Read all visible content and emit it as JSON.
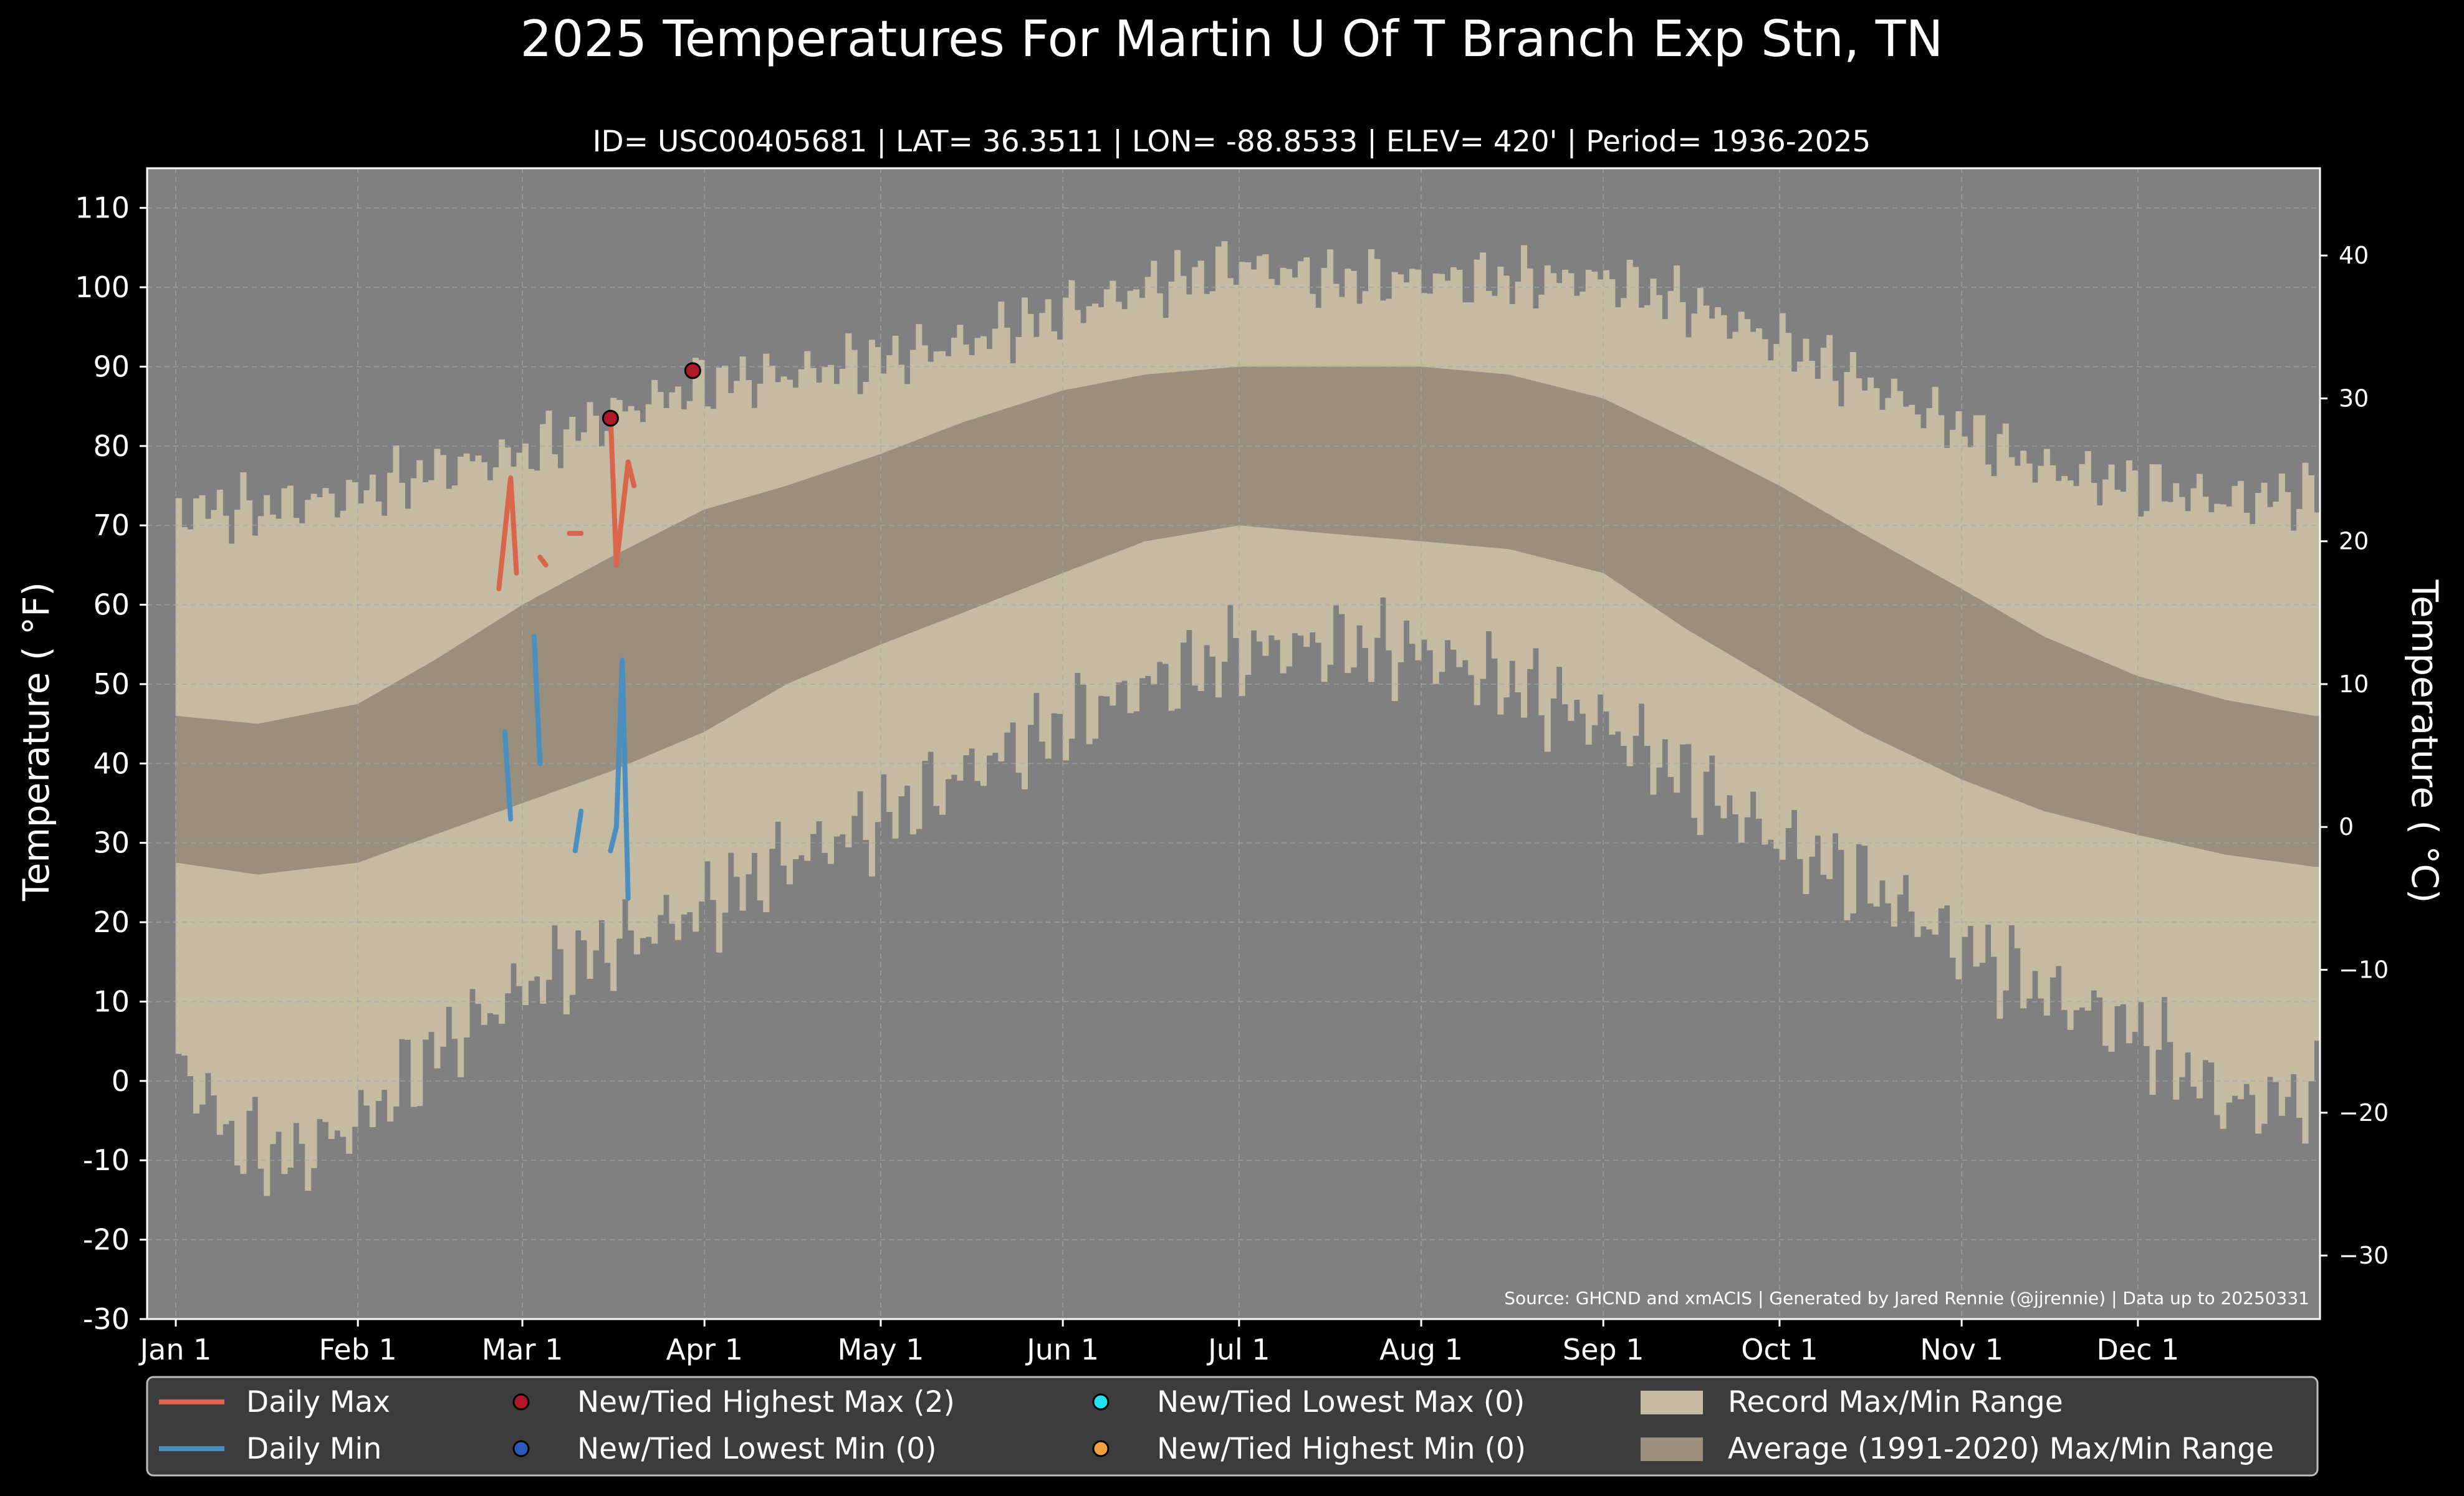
{
  "colors": {
    "background": "#000000",
    "plot_background": "#808080",
    "record_range": "#c4bba2",
    "average_range": "#9a8e7c",
    "daily_max": "#d8654c",
    "daily_min": "#4a8fc0",
    "highest_max_marker": "#b0182a",
    "lowest_min_marker": "#2a5ab8",
    "lowest_max_marker": "#22e4f0",
    "highest_min_marker": "#f0a040",
    "grid": "#a8a8a8",
    "legend_bg": "#3c3c3c"
  },
  "chart_data": {
    "type": "area",
    "title": "2025 Temperatures For Martin U Of T Branch Exp Stn, TN",
    "subtitle": "ID= USC00405681 | LAT= 36.3511 | LON= -88.8533 | ELEV= 420' | Period= 1936-2025",
    "ylabel": "Temperature ( $^\\circ$F)",
    "ylabel_display": "Temperature ( °F)",
    "ylabel_right": "Temperature ( °C)",
    "ylim": [
      -30,
      115
    ],
    "y_ticks": [
      -30,
      -20,
      -10,
      0,
      10,
      20,
      30,
      40,
      50,
      60,
      70,
      80,
      90,
      100,
      110
    ],
    "y_ticks_right_c": [
      -30,
      -20,
      -10,
      0,
      10,
      20,
      30,
      40
    ],
    "x_ticks": [
      {
        "label": "Jan 1",
        "day": 1
      },
      {
        "label": "Feb 1",
        "day": 32
      },
      {
        "label": "Mar 1",
        "day": 60
      },
      {
        "label": "Apr 1",
        "day": 91
      },
      {
        "label": "May 1",
        "day": 121
      },
      {
        "label": "Jun 1",
        "day": 152
      },
      {
        "label": "Jul 1",
        "day": 182
      },
      {
        "label": "Aug 1",
        "day": 213
      },
      {
        "label": "Sep 1",
        "day": 244
      },
      {
        "label": "Oct 1",
        "day": 274
      },
      {
        "label": "Nov 1",
        "day": 305
      },
      {
        "label": "Dec 1",
        "day": 335
      }
    ],
    "record_max_keypoints": [
      [
        1,
        72
      ],
      [
        15,
        72
      ],
      [
        32,
        74
      ],
      [
        45,
        77
      ],
      [
        60,
        79
      ],
      [
        75,
        84
      ],
      [
        91,
        88
      ],
      [
        105,
        89
      ],
      [
        121,
        91
      ],
      [
        135,
        93
      ],
      [
        152,
        97
      ],
      [
        166,
        100
      ],
      [
        182,
        103
      ],
      [
        197,
        101
      ],
      [
        213,
        101
      ],
      [
        228,
        101
      ],
      [
        244,
        101
      ],
      [
        258,
        98
      ],
      [
        274,
        93
      ],
      [
        288,
        88
      ],
      [
        305,
        82
      ],
      [
        319,
        77
      ],
      [
        335,
        75
      ],
      [
        350,
        73
      ],
      [
        365,
        74
      ]
    ],
    "record_min_keypoints": [
      [
        1,
        3
      ],
      [
        10,
        -7
      ],
      [
        20,
        -10
      ],
      [
        32,
        -5
      ],
      [
        45,
        4
      ],
      [
        60,
        12
      ],
      [
        75,
        17
      ],
      [
        91,
        22
      ],
      [
        105,
        28
      ],
      [
        121,
        33
      ],
      [
        135,
        39
      ],
      [
        152,
        45
      ],
      [
        166,
        50
      ],
      [
        182,
        54
      ],
      [
        197,
        55
      ],
      [
        213,
        54
      ],
      [
        228,
        50
      ],
      [
        244,
        45
      ],
      [
        258,
        38
      ],
      [
        274,
        30
      ],
      [
        288,
        25
      ],
      [
        305,
        17
      ],
      [
        319,
        11
      ],
      [
        335,
        6
      ],
      [
        350,
        -3
      ],
      [
        365,
        -2
      ]
    ],
    "avg_max_keypoints": [
      [
        1,
        46
      ],
      [
        15,
        45
      ],
      [
        32,
        47.5
      ],
      [
        45,
        53
      ],
      [
        60,
        60
      ],
      [
        75,
        66
      ],
      [
        91,
        72
      ],
      [
        105,
        75
      ],
      [
        121,
        79
      ],
      [
        135,
        83
      ],
      [
        152,
        87
      ],
      [
        166,
        89
      ],
      [
        182,
        90
      ],
      [
        197,
        90
      ],
      [
        213,
        90
      ],
      [
        228,
        89
      ],
      [
        244,
        86
      ],
      [
        258,
        81
      ],
      [
        274,
        75
      ],
      [
        288,
        69
      ],
      [
        305,
        62
      ],
      [
        319,
        56
      ],
      [
        335,
        51
      ],
      [
        350,
        48
      ],
      [
        365,
        46
      ]
    ],
    "avg_min_keypoints": [
      [
        1,
        27.5
      ],
      [
        15,
        26
      ],
      [
        32,
        27.5
      ],
      [
        45,
        31
      ],
      [
        60,
        35
      ],
      [
        75,
        39
      ],
      [
        91,
        44
      ],
      [
        105,
        50
      ],
      [
        121,
        55
      ],
      [
        135,
        59
      ],
      [
        152,
        64
      ],
      [
        166,
        68
      ],
      [
        182,
        70
      ],
      [
        197,
        69
      ],
      [
        213,
        68
      ],
      [
        228,
        67
      ],
      [
        244,
        64
      ],
      [
        258,
        57
      ],
      [
        274,
        50
      ],
      [
        288,
        44
      ],
      [
        305,
        38
      ],
      [
        319,
        34
      ],
      [
        335,
        31
      ],
      [
        350,
        28.5
      ],
      [
        365,
        27
      ]
    ],
    "series": [
      {
        "name": "Daily Max",
        "segments": [
          [
            [
              56,
              62
            ],
            [
              58,
              76
            ],
            [
              59,
              64
            ]
          ],
          [
            [
              63,
              66
            ],
            [
              64,
              65
            ]
          ],
          [
            [
              68,
              69
            ],
            [
              70,
              69
            ]
          ],
          [
            [
              75,
              84
            ],
            [
              76,
              65
            ],
            [
              78,
              78
            ],
            [
              79,
              75
            ]
          ]
        ]
      },
      {
        "name": "Daily Min",
        "segments": [
          [
            [
              57,
              44
            ],
            [
              58,
              33
            ]
          ],
          [
            [
              62,
              56
            ],
            [
              63,
              40
            ]
          ],
          [
            [
              69,
              29
            ],
            [
              70,
              34
            ]
          ],
          [
            [
              75,
              29
            ],
            [
              76,
              32
            ],
            [
              77,
              53
            ],
            [
              78,
              23
            ]
          ]
        ]
      }
    ],
    "record_points": [
      {
        "type": "highest_max",
        "points": [
          [
            75,
            83.5
          ],
          [
            89,
            89.5
          ]
        ]
      }
    ],
    "legend": {
      "position": "bottom",
      "entries": [
        {
          "id": "daily_max",
          "label": "Daily Max"
        },
        {
          "id": "daily_min",
          "label": "Daily Min"
        },
        {
          "id": "new_highest_max",
          "label": "New/Tied Highest Max (2)"
        },
        {
          "id": "new_lowest_min",
          "label": "New/Tied Lowest Min (0)"
        },
        {
          "id": "new_lowest_max",
          "label": "New/Tied Lowest Max (0)"
        },
        {
          "id": "new_highest_min",
          "label": "New/Tied Highest Min (0)"
        },
        {
          "id": "record_range",
          "label": "Record Max/Min Range"
        },
        {
          "id": "average_range",
          "label": "Average (1991-2020) Max/Min Range"
        }
      ]
    },
    "source": "Source: GHCND and xmACIS | Generated by Jared Rennie (@jjrennie) | Data up to 20250331",
    "grid": true
  }
}
